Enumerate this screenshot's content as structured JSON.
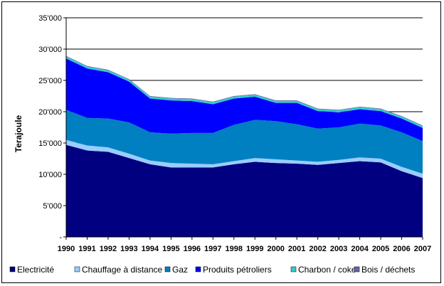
{
  "chart_data": {
    "type": "area",
    "stacked": true,
    "title": "",
    "xlabel": "",
    "ylabel": "Terajoule",
    "ylim": [
      0,
      35000
    ],
    "y_ticks": [
      0,
      5000,
      10000,
      15000,
      20000,
      25000,
      30000,
      35000
    ],
    "y_tick_labels": [
      "-",
      "5'000",
      "10'000",
      "15'000",
      "20'000",
      "25'000",
      "30'000",
      "35'000"
    ],
    "grid": true,
    "legend_position": "bottom",
    "x": [
      "1990",
      "1991",
      "1992",
      "1993",
      "1994",
      "1995",
      "1996",
      "1997",
      "1998",
      "1999",
      "2000",
      "2001",
      "2002",
      "2003",
      "2004",
      "2005",
      "2006",
      "2007"
    ],
    "series": [
      {
        "name": "Electricité",
        "color": "#000080",
        "values": [
          14700,
          13800,
          13600,
          12600,
          11600,
          11100,
          11100,
          11100,
          11600,
          12000,
          11800,
          11700,
          11500,
          11800,
          12100,
          11900,
          10500,
          9400
        ]
      },
      {
        "name": "Chauffage à distance",
        "color": "#99CCFF",
        "values": [
          800,
          800,
          700,
          700,
          600,
          700,
          600,
          500,
          500,
          600,
          600,
          500,
          500,
          500,
          600,
          600,
          700,
          700
        ]
      },
      {
        "name": "Gaz",
        "color": "#0080C0",
        "values": [
          4800,
          4400,
          4600,
          5000,
          4500,
          4700,
          4900,
          5000,
          5800,
          6100,
          6100,
          5800,
          5300,
          5200,
          5400,
          5300,
          5500,
          5200
        ]
      },
      {
        "name": "Produits pétroliers",
        "color": "#0000FF",
        "values": [
          8200,
          7900,
          7400,
          6500,
          5400,
          5300,
          5100,
          4600,
          4200,
          3700,
          2900,
          3400,
          2800,
          2400,
          2300,
          2300,
          2200,
          2100
        ]
      },
      {
        "name": "Charbon / coke",
        "color": "#33CCCC",
        "values": [
          300,
          300,
          300,
          300,
          300,
          300,
          300,
          300,
          300,
          300,
          300,
          300,
          300,
          300,
          300,
          300,
          300,
          300
        ]
      },
      {
        "name": "Bois / déchets",
        "color": "#6666AA",
        "values": [
          100,
          100,
          100,
          100,
          100,
          100,
          100,
          100,
          100,
          100,
          100,
          100,
          100,
          100,
          100,
          100,
          100,
          100
        ]
      }
    ]
  }
}
